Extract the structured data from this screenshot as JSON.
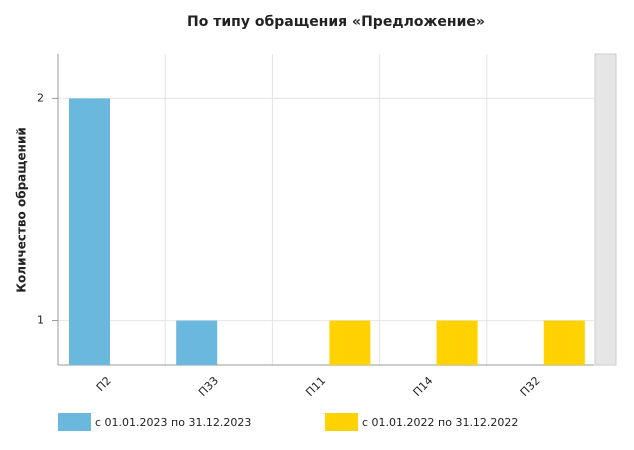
{
  "chart_data": {
    "type": "bar",
    "title": "По типу обращения «Предложение»",
    "y_label": "Количество обращений",
    "categories": [
      "П2",
      "П33",
      "П11",
      "П14",
      "П32"
    ],
    "series": [
      {
        "name": "с 01.01.2023 по 31.12.2023",
        "color": "#6bb8df",
        "values": [
          2,
          1,
          null,
          null,
          null
        ]
      },
      {
        "name": "с 01.01.2022 по 31.12.2022",
        "color": "#ffd200",
        "values": [
          null,
          null,
          1,
          1,
          1
        ]
      }
    ],
    "ylim": [
      0.8,
      2.2
    ],
    "yticks": [
      1,
      2
    ],
    "grid": true
  }
}
